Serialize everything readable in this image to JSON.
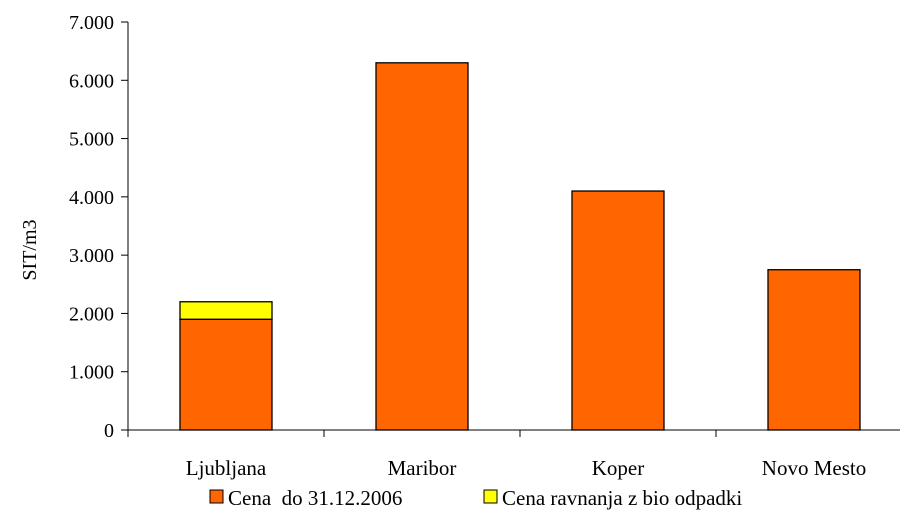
{
  "chart_data": {
    "type": "bar",
    "stacked": true,
    "title": "",
    "xlabel": "",
    "ylabel": "SIT/m3",
    "ylim": [
      0,
      7000
    ],
    "y_ticks": [
      0,
      1000,
      2000,
      3000,
      4000,
      5000,
      6000,
      7000
    ],
    "y_tick_labels": [
      "0",
      "1.000",
      "2.000",
      "3.000",
      "4.000",
      "5.000",
      "6.000",
      "7.000"
    ],
    "categories": [
      "Ljubljana",
      "Maribor",
      "Koper",
      "Novo Mesto"
    ],
    "series": [
      {
        "name": "Cena  do 31.12.2006",
        "values": [
          1900,
          6300,
          4100,
          2750
        ],
        "color": "#ff6600"
      },
      {
        "name": "Cena ravnanja z bio odpadki",
        "values": [
          300,
          0,
          0,
          0
        ],
        "color": "#ffff00"
      }
    ],
    "grid": false,
    "legend_position": "bottom"
  }
}
